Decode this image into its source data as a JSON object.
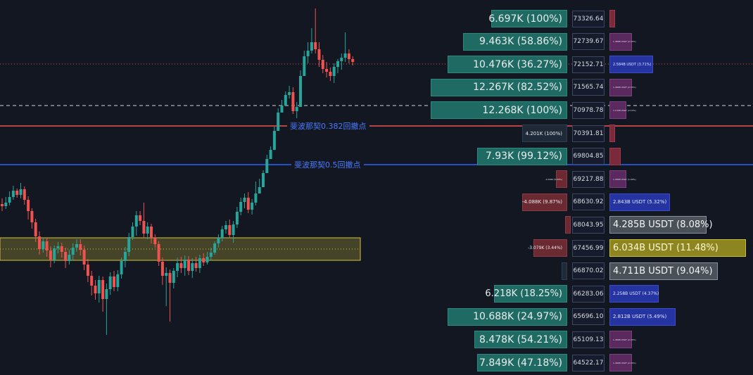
{
  "colors": {
    "bg": "#131722",
    "up": "#26a69a",
    "down": "#ef5350",
    "fib382": "#ef5350",
    "fib5": "#2962ff",
    "zone": "#c9b83a"
  },
  "annotations": {
    "fib382": "斐波那契0.382回撤点",
    "fib5": "斐波那契0.5回撤点"
  },
  "rows": [
    {
      "price": "73326.64",
      "delta": "6.697K (100%)",
      "dtype": "g",
      "dw": 108,
      "dsize": 14,
      "vol": "",
      "vtype": "m",
      "vw": 8,
      "vsize": 6
    },
    {
      "price": "72739.67",
      "delta": "9.463K (58.86%)",
      "dtype": "g",
      "dw": 148,
      "dsize": 14,
      "vol": "1.466B USDT (2.74%)",
      "vtype": "p",
      "vw": 32,
      "vsize": 3
    },
    {
      "price": "72152.71",
      "delta": "10.476K (36.27%)",
      "dtype": "g",
      "dw": 170,
      "dsize": 14,
      "vol": "2.584B USDT (3.71%)",
      "vtype": "b",
      "vw": 62,
      "vsize": 5
    },
    {
      "price": "71565.74",
      "delta": "12.267K (82.52%)",
      "dtype": "g",
      "dw": 194,
      "dsize": 14,
      "vol": "1.466B USDT (2.74%)",
      "vtype": "p",
      "vw": 32,
      "vsize": 3
    },
    {
      "price": "70978.78",
      "delta": "12.268K (100%)",
      "dtype": "g",
      "dw": 194,
      "dsize": 14,
      "vol": "1.133B USDT (2.12%)",
      "vtype": "p",
      "vw": 24,
      "vsize": 3
    },
    {
      "price": "70391.81",
      "delta": "4.201K (100%)",
      "dtype": "d",
      "dw": 64,
      "dsize": 7,
      "vol": "",
      "vtype": "m",
      "vw": 8,
      "vsize": 6
    },
    {
      "price": "69804.85",
      "delta": "7.93K (99.12%)",
      "dtype": "g",
      "dw": 128,
      "dsize": 14,
      "vol": "",
      "vtype": "m",
      "vw": 16,
      "vsize": 6
    },
    {
      "price": "69217.88",
      "delta": "-1.016K (5.09%)",
      "dtype": "r",
      "dw": 16,
      "dsize": 3,
      "vol": "1.066B USDT (1.99%)",
      "vtype": "p",
      "vw": 24,
      "vsize": 3
    },
    {
      "price": "68630.92",
      "delta": "-4.088K (9.87%)",
      "dtype": "r",
      "dw": 64,
      "dsize": 7,
      "vol": "2.843B USDT (5.32%)",
      "vtype": "b",
      "vw": 86,
      "vsize": 7
    },
    {
      "price": "68043.95",
      "delta": "",
      "dtype": "r",
      "dw": 3,
      "dsize": 7,
      "vol": "4.285B USDT (8.08%)",
      "vtype": "gr",
      "vw": 138,
      "vsize": 13
    },
    {
      "price": "67456.99",
      "delta": "-3.079K (3.44%)",
      "dtype": "r",
      "dw": 48,
      "dsize": 6,
      "vol": "6.034B USDT (11.48%)",
      "vtype": "y",
      "vw": 194,
      "vsize": 13
    },
    {
      "price": "66870.02",
      "delta": "",
      "dtype": "d",
      "dw": 8,
      "dsize": 7,
      "vol": "4.711B USDT (9.04%)",
      "vtype": "gr",
      "vw": 154,
      "vsize": 13
    },
    {
      "price": "66283.06",
      "delta": "6.218K (18.25%)",
      "dtype": "g",
      "dw": 104,
      "dsize": 13,
      "vol": "2.258B USDT (4.37%)",
      "vtype": "b",
      "vw": 70,
      "vsize": 6
    },
    {
      "price": "65696.10",
      "delta": "10.688K (24.97%)",
      "dtype": "g",
      "dw": 170,
      "dsize": 14,
      "vol": "2.812B USDT (5.49%)",
      "vtype": "b",
      "vw": 94,
      "vsize": 7
    },
    {
      "price": "65109.13",
      "delta": "8.478K (54.21%)",
      "dtype": "g",
      "dw": 132,
      "dsize": 14,
      "vol": "1.466B USDT (2.74%)",
      "vtype": "p",
      "vw": 32,
      "vsize": 3
    },
    {
      "price": "64522.17",
      "delta": "7.849K (47.18%)",
      "dtype": "g",
      "dw": 128,
      "dsize": 14,
      "vol": "1.466B USDT (2.74%)",
      "vtype": "p",
      "vw": 32,
      "vsize": 3
    }
  ]
}
